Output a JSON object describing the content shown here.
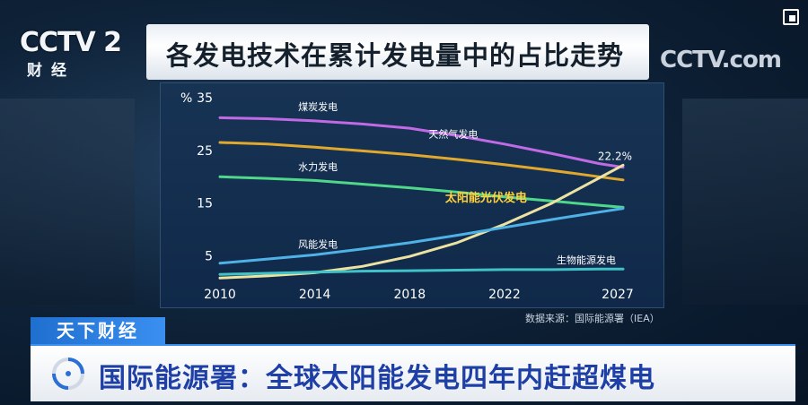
{
  "logo": {
    "mark": "CCTV 2",
    "channel": "财经",
    "watermark": "CCTV.com"
  },
  "program": {
    "name": "天下财经",
    "headline": "国际能源署：全球太阳能发电四年内赶超煤电"
  },
  "chart_data": {
    "type": "line",
    "title": "各发电技术在累计发电量中的占比走势",
    "ylabel": "%",
    "yticks": [
      35,
      25,
      15,
      5
    ],
    "ylim": [
      0,
      35
    ],
    "xticks": [
      2010,
      2014,
      2018,
      2022,
      2027
    ],
    "xlim": [
      2010,
      2027
    ],
    "grid": false,
    "source": "数据来源：国际能源署（IEA）",
    "annotation": {
      "text": "22.2%",
      "series": "太阳能光伏发电",
      "x": 2027,
      "y": 22.2
    },
    "colors": {
      "煤炭发电": "#c06ae6",
      "天然气发电": "#e0a92e",
      "水力发电": "#4fd88a",
      "太阳能光伏发电": "#ece3a3",
      "风能发电": "#4fb2e6",
      "生物能源发电": "#40c2c6"
    },
    "series": [
      {
        "name": "煤炭发电",
        "x": [
          2010,
          2012,
          2014,
          2016,
          2018,
          2020,
          2022,
          2024,
          2026,
          2027
        ],
        "values": [
          31.2,
          31.0,
          30.6,
          30.0,
          29.2,
          27.8,
          26.2,
          24.4,
          22.5,
          21.8
        ]
      },
      {
        "name": "天然气发电",
        "x": [
          2010,
          2012,
          2014,
          2016,
          2018,
          2020,
          2022,
          2024,
          2026,
          2027
        ],
        "values": [
          26.5,
          26.2,
          25.6,
          24.9,
          24.2,
          23.3,
          22.3,
          21.2,
          20.0,
          19.4
        ]
      },
      {
        "name": "水力发电",
        "x": [
          2010,
          2012,
          2014,
          2016,
          2018,
          2020,
          2022,
          2024,
          2026,
          2027
        ],
        "values": [
          20.0,
          19.7,
          19.3,
          18.6,
          17.9,
          17.1,
          16.2,
          15.4,
          14.6,
          14.2
        ]
      },
      {
        "name": "太阳能光伏发电",
        "x": [
          2010,
          2012,
          2014,
          2016,
          2018,
          2020,
          2022,
          2024,
          2026,
          2027
        ],
        "values": [
          0.8,
          1.2,
          1.8,
          3.0,
          4.9,
          7.5,
          11.0,
          15.0,
          19.8,
          22.2
        ]
      },
      {
        "name": "风能发电",
        "x": [
          2010,
          2012,
          2014,
          2016,
          2018,
          2020,
          2022,
          2024,
          2026,
          2027
        ],
        "values": [
          3.6,
          4.4,
          5.2,
          6.3,
          7.5,
          8.9,
          10.4,
          11.9,
          13.3,
          14.0
        ]
      },
      {
        "name": "生物能源发电",
        "x": [
          2010,
          2012,
          2014,
          2016,
          2018,
          2020,
          2022,
          2024,
          2026,
          2027
        ],
        "values": [
          1.5,
          1.7,
          1.9,
          2.1,
          2.2,
          2.3,
          2.4,
          2.4,
          2.5,
          2.5
        ]
      }
    ],
    "labels": [
      {
        "series": "煤炭发电",
        "text": "煤炭发电",
        "x": 2013.3,
        "y": 32.6,
        "bold": false,
        "fill": "#ffffff",
        "size": 11
      },
      {
        "series": "天然气发电",
        "text": "天然气发电",
        "x": 2018.8,
        "y": 27.4,
        "bold": false,
        "fill": "#ffffff",
        "size": 11
      },
      {
        "series": "水力发电",
        "text": "水力发电",
        "x": 2013.3,
        "y": 21.2,
        "bold": false,
        "fill": "#ffffff",
        "size": 11
      },
      {
        "series": "太阳能光伏发电",
        "text": "太阳能光伏发电",
        "x": 2019.5,
        "y": 15.3,
        "bold": true,
        "fill": "#ffd23a",
        "size": 13
      },
      {
        "series": "风能发电",
        "text": "风能发电",
        "x": 2013.3,
        "y": 6.5,
        "bold": false,
        "fill": "#ffffff",
        "size": 11
      },
      {
        "series": "生物能源发电",
        "text": "生物能源发电",
        "x": 2024.2,
        "y": 3.6,
        "bold": false,
        "fill": "#ffffff",
        "size": 11
      }
    ]
  }
}
